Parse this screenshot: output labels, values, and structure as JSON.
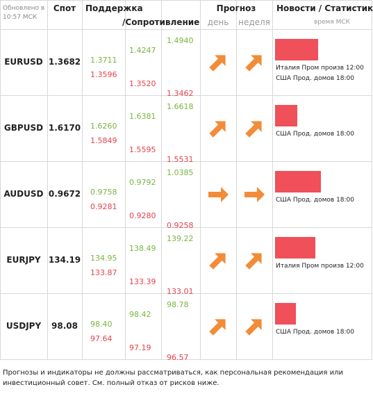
{
  "header": {
    "updated": "Обновлено в 10:57 МСК",
    "spot": "Спот",
    "support": "Поддержка",
    "resistance": "/Сопротивление",
    "forecast": "Прогноз",
    "day": "день",
    "week": "неделя",
    "news": "Новости / Статистика",
    "time_note": "время МСК"
  },
  "rows": [
    {
      "pair": "EURUSD",
      "spot": "1.3682",
      "levels": [
        [
          "1.3711",
          "1.3596"
        ],
        [
          "1.4247",
          "1.3520"
        ],
        [
          "1.4940",
          "1.3462"
        ]
      ],
      "forecast": {
        "day": "up-right",
        "week": "up-right"
      },
      "news_bar": 62,
      "news": [
        "Италия Пром произв 12:00",
        "США Прод. домов 18:00"
      ]
    },
    {
      "pair": "GBPUSD",
      "spot": "1.6170",
      "levels": [
        [
          "1.6260",
          "1.5849"
        ],
        [
          "1.6381",
          "1.5595"
        ],
        [
          "1.6618",
          "1.5531"
        ]
      ],
      "forecast": {
        "day": "up-right",
        "week": "up-right"
      },
      "news_bar": 32,
      "news": [
        "США Прод. домов 18:00"
      ]
    },
    {
      "pair": "AUDUSD",
      "spot": "0.9672",
      "levels": [
        [
          "0.9758",
          "0.9281"
        ],
        [
          "0.9792",
          "0.9280"
        ],
        [
          "1.0385",
          "0.9258"
        ]
      ],
      "forecast": {
        "day": "right",
        "week": "right"
      },
      "news_bar": 66,
      "news": [
        "США Прод. домов 18:00"
      ]
    },
    {
      "pair": "EURJPY",
      "spot": "134.19",
      "levels": [
        [
          "134.95",
          "133.87"
        ],
        [
          "138.49",
          "133.39"
        ],
        [
          "139.22",
          "133.01"
        ]
      ],
      "forecast": {
        "day": "up-right",
        "week": "up-right"
      },
      "news_bar": 58,
      "news": [
        "Италия Пром произв 12:00"
      ]
    },
    {
      "pair": "USDJPY",
      "spot": "98.08",
      "levels": [
        [
          "98.40",
          "97.64"
        ],
        [
          "98.42",
          "97.19"
        ],
        [
          "98.78",
          "96.57"
        ]
      ],
      "forecast": {
        "day": "up-right",
        "week": "up-right"
      },
      "news_bar": 30,
      "news": [
        "США Прод. домов 18:00"
      ]
    }
  ],
  "footer": "Прогнозы и индикаторы не должны рассматриваться, как персональная рекомендация или инвестиционный совет. См. полный отказ от рисков ниже."
}
